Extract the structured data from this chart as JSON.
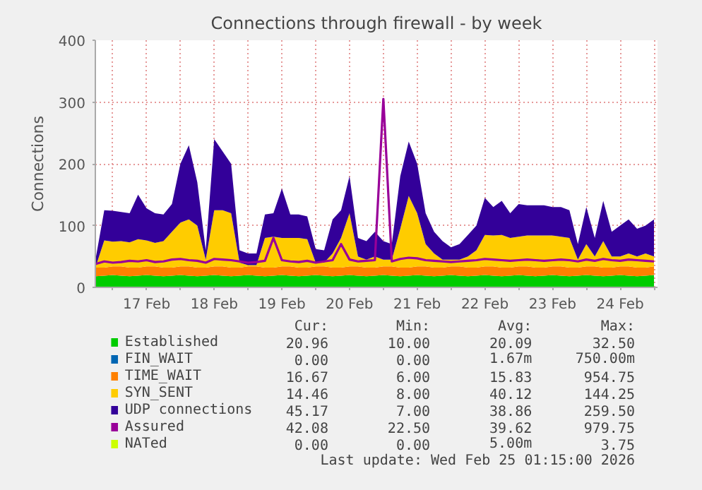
{
  "chart_data": {
    "type": "area",
    "title": "Connections through firewall - by week",
    "ylabel": "Connections",
    "x": [
      "2026-02-16T18:00",
      "2026-02-16T21:00",
      "2026-02-17T00:00",
      "2026-02-17T03:00",
      "2026-02-17T06:00",
      "2026-02-17T09:00",
      "2026-02-17T12:00",
      "2026-02-17T15:00",
      "2026-02-17T18:00",
      "2026-02-17T21:00",
      "2026-02-18T00:00",
      "2026-02-18T03:00",
      "2026-02-18T06:00",
      "2026-02-18T09:00",
      "2026-02-18T12:00",
      "2026-02-18T15:00",
      "2026-02-18T18:00",
      "2026-02-18T21:00",
      "2026-02-19T00:00",
      "2026-02-19T03:00",
      "2026-02-19T06:00",
      "2026-02-19T09:00",
      "2026-02-19T12:00",
      "2026-02-19T15:00",
      "2026-02-19T18:00",
      "2026-02-19T21:00",
      "2026-02-20T00:00",
      "2026-02-20T03:00",
      "2026-02-20T06:00",
      "2026-02-20T09:00",
      "2026-02-20T12:00",
      "2026-02-20T15:00",
      "2026-02-20T18:00",
      "2026-02-20T21:00",
      "2026-02-21T00:00",
      "2026-02-21T03:00",
      "2026-02-21T06:00",
      "2026-02-21T09:00",
      "2026-02-21T12:00",
      "2026-02-21T15:00",
      "2026-02-21T18:00",
      "2026-02-21T21:00",
      "2026-02-22T00:00",
      "2026-02-22T03:00",
      "2026-02-22T06:00",
      "2026-02-22T09:00",
      "2026-02-22T12:00",
      "2026-02-22T15:00",
      "2026-02-22T18:00",
      "2026-02-22T21:00",
      "2026-02-23T00:00",
      "2026-02-23T03:00",
      "2026-02-23T06:00",
      "2026-02-23T09:00",
      "2026-02-23T12:00",
      "2026-02-23T15:00",
      "2026-02-23T18:00",
      "2026-02-23T21:00",
      "2026-02-24T00:00",
      "2026-02-24T03:00",
      "2026-02-24T06:00",
      "2026-02-24T09:00",
      "2026-02-24T12:00",
      "2026-02-24T15:00",
      "2026-02-24T18:00",
      "2026-02-24T21:00",
      "2026-02-25T00:00"
    ],
    "stacked": true,
    "series": [
      {
        "name": "Established",
        "color": "#00cc00",
        "values": [
          18,
          19,
          20,
          19,
          18,
          19,
          20,
          19,
          18,
          19,
          20,
          19,
          18,
          19,
          20,
          19,
          18,
          19,
          20,
          19,
          18,
          19,
          20,
          19,
          18,
          19,
          20,
          19,
          18,
          19,
          20,
          19,
          18,
          19,
          20,
          19,
          18,
          19,
          20,
          19,
          18,
          19,
          20,
          19,
          18,
          19,
          20,
          19,
          18,
          19,
          20,
          19,
          18,
          19,
          20,
          19,
          18,
          19,
          20,
          19,
          18,
          19,
          20,
          19,
          18,
          19,
          20
        ]
      },
      {
        "name": "FIN_WAIT",
        "color": "#0066b3",
        "values": [
          null,
          null,
          null,
          null,
          null,
          null,
          null,
          null,
          null,
          null,
          null,
          null,
          null,
          null,
          null,
          null,
          null,
          null,
          null,
          null,
          null,
          null,
          null,
          null,
          null,
          null,
          null,
          null,
          null,
          null,
          null,
          null,
          null,
          null,
          null,
          null,
          null,
          null,
          null,
          null,
          null,
          null,
          null,
          null,
          null,
          null,
          null,
          null,
          null,
          null,
          null,
          null,
          null,
          null,
          null,
          null,
          null,
          null,
          null,
          null,
          null,
          null,
          null,
          null,
          null,
          null,
          null
        ]
      },
      {
        "name": "TIME_WAIT",
        "color": "#ff8000",
        "values": [
          14,
          13,
          14,
          15,
          14,
          13,
          14,
          15,
          14,
          13,
          14,
          15,
          14,
          13,
          14,
          15,
          14,
          13,
          14,
          15,
          14,
          13,
          14,
          15,
          14,
          13,
          14,
          15,
          14,
          13,
          14,
          15,
          14,
          13,
          14,
          15,
          14,
          13,
          14,
          15,
          14,
          13,
          14,
          15,
          14,
          13,
          14,
          15,
          14,
          13,
          14,
          15,
          14,
          13,
          14,
          15,
          14,
          13,
          14,
          15,
          14,
          13,
          14,
          15,
          14,
          13,
          14
        ]
      },
      {
        "name": "SYN_SENT",
        "color": "#ffcc00",
        "values": [
          2,
          44,
          40,
          41,
          41,
          46,
          42,
          38,
          43,
          58,
          71,
          76,
          68,
          13,
          91,
          91,
          88,
          8,
          2,
          2,
          48,
          50,
          46,
          46,
          48,
          46,
          6,
          6,
          23,
          48,
          86,
          16,
          13,
          18,
          11,
          11,
          63,
          116,
          86,
          36,
          23,
          13,
          11,
          11,
          18,
          28,
          51,
          50,
          53,
          48,
          48,
          50,
          52,
          52,
          50,
          48,
          48,
          13,
          36,
          16,
          43,
          18,
          16,
          21,
          18,
          23,
          16
        ]
      },
      {
        "name": "UDP connections",
        "color": "#330099",
        "values": [
          14,
          49,
          50,
          47,
          47,
          72,
          52,
          48,
          43,
          45,
          95,
          120,
          70,
          15,
          115,
          95,
          80,
          20,
          19,
          19,
          38,
          38,
          80,
          38,
          38,
          37,
          22,
          20,
          55,
          45,
          60,
          30,
          30,
          40,
          30,
          25,
          85,
          88,
          80,
          50,
          35,
          30,
          20,
          25,
          35,
          40,
          60,
          46,
          55,
          40,
          53,
          49,
          49,
          49,
          46,
          48,
          45,
          25,
          60,
          30,
          65,
          40,
          50,
          55,
          45,
          45,
          60
        ]
      },
      {
        "name": "Assured",
        "color": "#990099",
        "type": "line",
        "values": [
          38,
          42,
          40,
          41,
          43,
          42,
          44,
          41,
          42,
          45,
          46,
          44,
          43,
          40,
          46,
          45,
          44,
          42,
          40,
          41,
          43,
          80,
          44,
          42,
          41,
          43,
          40,
          42,
          44,
          70,
          45,
          42,
          43,
          44,
          305,
          42,
          46,
          48,
          47,
          44,
          43,
          42,
          41,
          42,
          43,
          44,
          46,
          45,
          44,
          43,
          44,
          45,
          44,
          43,
          44,
          45,
          44,
          42,
          45,
          43,
          46,
          44,
          43,
          45,
          44,
          43,
          42
        ]
      },
      {
        "name": "NATed",
        "color": "#ccff00",
        "type": "line",
        "values": [
          null,
          null,
          null,
          null,
          null,
          null,
          null,
          null,
          null,
          null,
          null,
          null,
          null,
          null,
          null,
          null,
          null,
          null,
          null,
          null,
          null,
          null,
          null,
          null,
          null,
          null,
          null,
          null,
          null,
          null,
          null,
          null,
          null,
          null,
          null,
          null,
          null,
          null,
          null,
          null,
          null,
          null,
          null,
          null,
          null,
          null,
          null,
          null,
          null,
          null,
          null,
          null,
          null,
          null,
          null,
          null,
          null,
          null,
          null,
          null,
          null,
          null,
          null,
          null,
          null,
          null,
          null
        ]
      }
    ],
    "xlim": [
      "2026-02-16T17:50",
      "2026-02-25T01:15"
    ],
    "xticks": [
      {
        "value": "2026-02-17T00:00",
        "label": null
      },
      {
        "value": "2026-02-17T12:00",
        "label": "17 Feb"
      },
      {
        "value": "2026-02-18T00:00",
        "label": null
      },
      {
        "value": "2026-02-18T12:00",
        "label": "18 Feb"
      },
      {
        "value": "2026-02-19T00:00",
        "label": null
      },
      {
        "value": "2026-02-19T12:00",
        "label": "19 Feb"
      },
      {
        "value": "2026-02-20T00:00",
        "label": null
      },
      {
        "value": "2026-02-20T12:00",
        "label": "20 Feb"
      },
      {
        "value": "2026-02-21T00:00",
        "label": null
      },
      {
        "value": "2026-02-21T12:00",
        "label": "21 Feb"
      },
      {
        "value": "2026-02-22T00:00",
        "label": null
      },
      {
        "value": "2026-02-22T12:00",
        "label": "22 Feb"
      },
      {
        "value": "2026-02-23T00:00",
        "label": null
      },
      {
        "value": "2026-02-23T12:00",
        "label": "23 Feb"
      },
      {
        "value": "2026-02-24T00:00",
        "label": null
      },
      {
        "value": "2026-02-24T12:00",
        "label": "24 Feb"
      },
      {
        "value": "2026-02-25T00:00",
        "label": null
      }
    ],
    "ylim": [
      0,
      400
    ],
    "yticks": [
      0,
      100,
      200,
      300,
      400
    ],
    "grid": true,
    "legend": "bottom",
    "annotations": [
      "Cur:",
      "Min:",
      "Avg:",
      "Max:",
      "20.96",
      "10.00",
      "20.09",
      "32.50",
      "0.00",
      "0.00",
      "1.67m",
      "750.00m",
      "16.67",
      "6.00",
      "15.83",
      "954.75",
      "14.46",
      "8.00",
      "40.12",
      "144.25",
      "45.17",
      "7.00",
      "38.86",
      "259.50",
      "42.08",
      "22.50",
      "39.62",
      "979.75",
      "0.00",
      "0.00",
      "5.00m",
      "3.75",
      "Last update: Wed Feb 25 01:15:00 2026"
    ]
  }
}
